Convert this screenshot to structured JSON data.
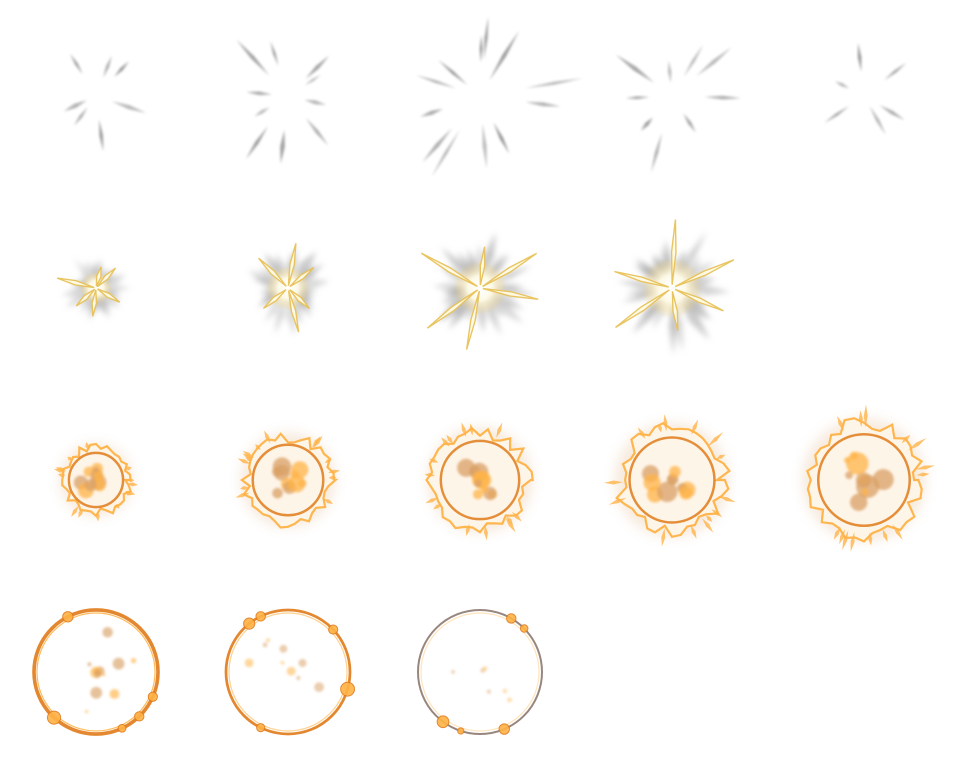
{
  "sprite_sheet": {
    "columns": 5,
    "rows": 4,
    "frames": [
      {
        "kind": "streaks",
        "level": 0.45,
        "count": 7,
        "seed": 1
      },
      {
        "kind": "streaks",
        "level": 0.75,
        "count": 10,
        "seed": 2
      },
      {
        "kind": "streaks",
        "level": 1.0,
        "count": 12,
        "seed": 3
      },
      {
        "kind": "streaks",
        "level": 0.75,
        "count": 9,
        "seed": 4
      },
      {
        "kind": "streaks",
        "level": 0.35,
        "count": 6,
        "seed": 5
      },
      {
        "kind": "flash",
        "level": 0.35,
        "seed": 6
      },
      {
        "kind": "flash",
        "level": 0.6,
        "seed": 7
      },
      {
        "kind": "flash",
        "level": 0.8,
        "seed": 8
      },
      {
        "kind": "flash",
        "level": 0.95,
        "seed": 9
      },
      {
        "kind": "empty"
      },
      {
        "kind": "fire",
        "level": 0.35,
        "seed": 10
      },
      {
        "kind": "fire",
        "level": 0.6,
        "seed": 11
      },
      {
        "kind": "fire",
        "level": 0.72,
        "seed": 12
      },
      {
        "kind": "fire",
        "level": 0.82,
        "seed": 13
      },
      {
        "kind": "fire",
        "level": 0.92,
        "seed": 14
      },
      {
        "kind": "ring",
        "level": 1.0,
        "fade": 0.15,
        "seed": 15
      },
      {
        "kind": "ring",
        "level": 1.0,
        "fade": 0.5,
        "seed": 16
      },
      {
        "kind": "ring",
        "level": 1.0,
        "fade": 0.8,
        "seed": 17
      },
      {
        "kind": "empty"
      },
      {
        "kind": "empty"
      }
    ],
    "colors": {
      "streak": "#8a8a8a",
      "flash_core": "#fffbe6",
      "flash_gold": "#e8c25a",
      "flash_smoke": "#9a9a9a",
      "fire_bright": "#ffb347",
      "fire_deep": "#e07b1a",
      "fire_ember": "#d9a066",
      "ring_gray": "#8c7a70"
    }
  }
}
